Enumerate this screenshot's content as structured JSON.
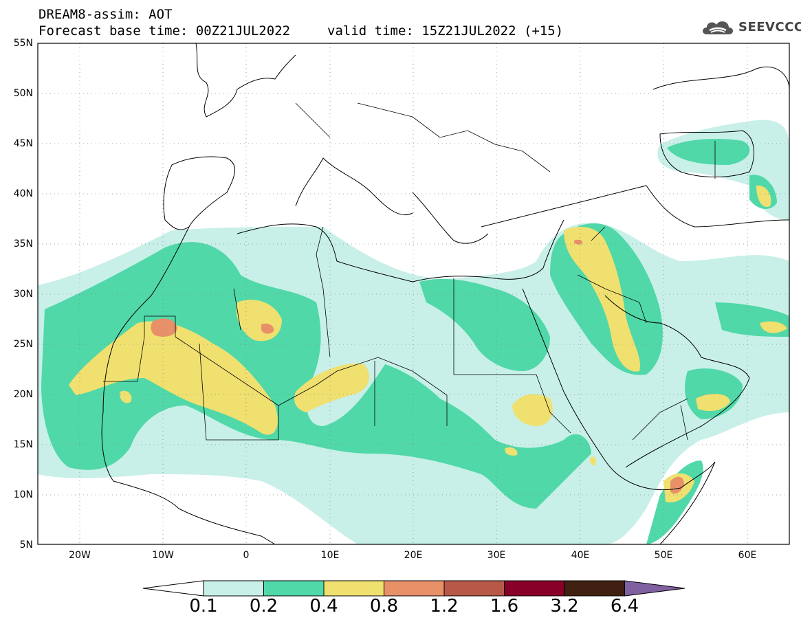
{
  "header": {
    "line1": "DREAM8-assim: AOT",
    "line2_base": "Forecast base time: 00Z21JUL2022",
    "line2_valid": "valid time: 15Z21JUL2022 (+15)"
  },
  "logo": {
    "text": "SEEVCCC",
    "icon": "cloud-icon"
  },
  "map": {
    "lon_range": [
      -25,
      65
    ],
    "lat_range": [
      5,
      55
    ],
    "lat_ticks": [
      "5N",
      "10N",
      "15N",
      "20N",
      "25N",
      "30N",
      "35N",
      "40N",
      "45N",
      "50N",
      "55N"
    ],
    "lon_ticks": [
      "20W",
      "10W",
      "0",
      "10E",
      "20E",
      "30E",
      "40E",
      "50E",
      "60E"
    ]
  },
  "colorbar": {
    "colors": [
      "#c8f0e8",
      "#50d8a8",
      "#f0e070",
      "#e89068",
      "#b85848",
      "#880028",
      "#402010"
    ],
    "under_color": "#ffffff",
    "over_color": "#8060a0",
    "labels": [
      "0.1",
      "0.2",
      "0.4",
      "0.8",
      "1.2",
      "1.6",
      "3.2",
      "6.4"
    ]
  }
}
